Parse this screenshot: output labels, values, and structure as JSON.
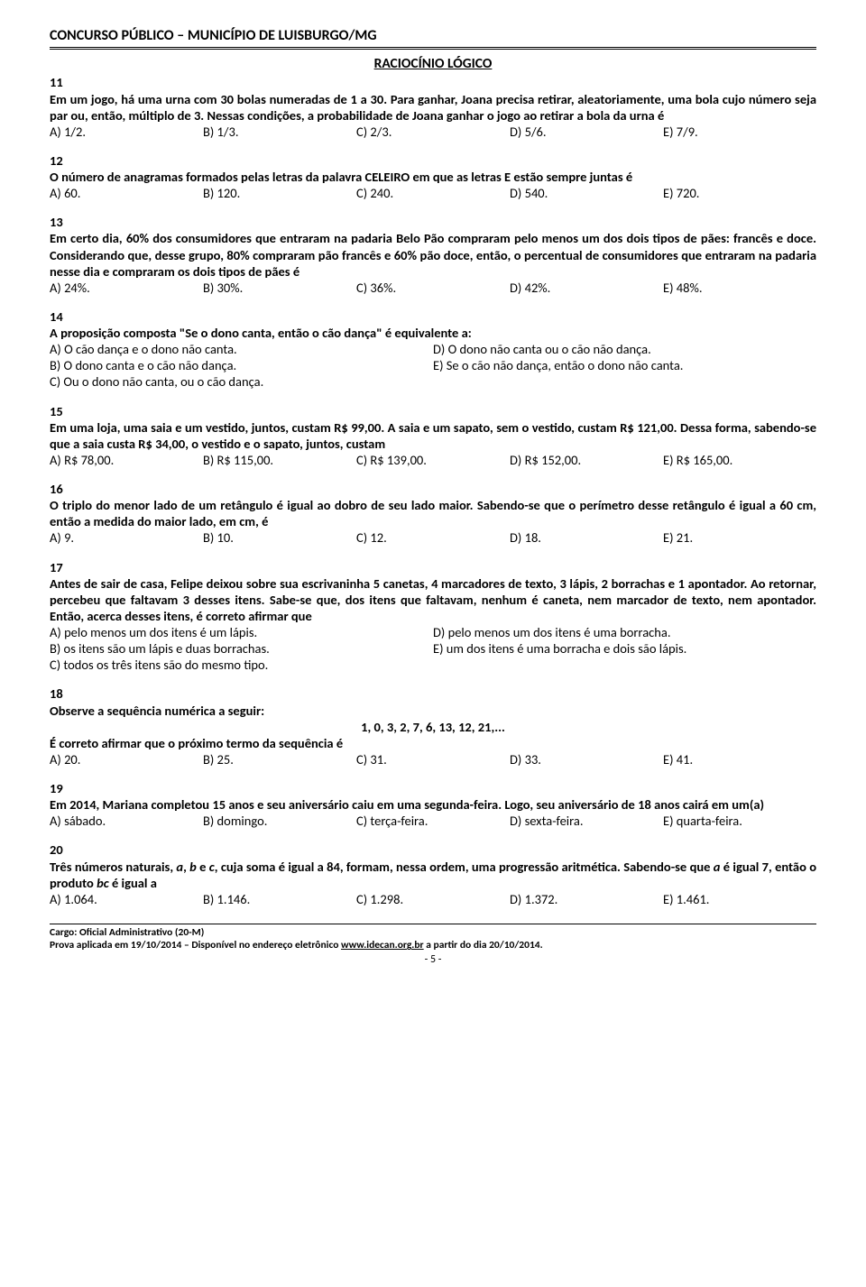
{
  "header": {
    "title": "CONCURSO PÚBLICO – MUNICÍPIO DE LUISBURGO/MG"
  },
  "section": {
    "title": "RACIOCÍNIO LÓGICO"
  },
  "q11": {
    "num": "11",
    "text": "Em um jogo, há uma urna com 30 bolas numeradas de 1 a 30. Para ganhar, Joana precisa retirar, aleatoriamente, uma bola cujo número seja par ou, então, múltiplo de 3. Nessas condições, a probabilidade de Joana ganhar o jogo ao retirar a bola da urna é",
    "a": "A) 1/2.",
    "b": "B) 1/3.",
    "c": "C) 2/3.",
    "d": "D) 5/6.",
    "e": "E) 7/9."
  },
  "q12": {
    "num": "12",
    "text": "O número de anagramas formados pelas letras da palavra CELEIRO em que as letras E estão sempre juntas é",
    "a": "A) 60.",
    "b": "B) 120.",
    "c": "C) 240.",
    "d": "D) 540.",
    "e": "E) 720."
  },
  "q13": {
    "num": "13",
    "text": "Em certo dia, 60% dos consumidores que entraram na padaria Belo Pão compraram pelo menos um dos dois tipos de pães: francês e doce. Considerando que, desse grupo, 80% compraram pão francês e 60% pão doce, então, o percentual de consumidores que entraram na padaria nesse dia e compraram os dois tipos de pães é",
    "a": "A) 24%.",
    "b": "B) 30%.",
    "c": "C) 36%.",
    "d": "D) 42%.",
    "e": "E) 48%."
  },
  "q14": {
    "num": "14",
    "text": "A proposição composta \"Se o dono canta, então o cão dança\" é equivalente a:",
    "a": "A) O cão dança e o dono não canta.",
    "b": "B) O dono canta e o cão não dança.",
    "c": "C) Ou o dono não canta, ou o cão dança.",
    "d": "D) O dono não canta ou o cão não dança.",
    "e": "E) Se o cão não dança, então o dono não canta."
  },
  "q15": {
    "num": "15",
    "text": "Em uma loja, uma saia e um vestido, juntos, custam R$ 99,00. A saia e um sapato, sem o vestido, custam R$ 121,00. Dessa forma, sabendo-se que a saia custa R$ 34,00, o vestido e o sapato, juntos, custam",
    "a": "A) R$ 78,00.",
    "b": "B) R$ 115,00.",
    "c": "C) R$ 139,00.",
    "d": "D) R$ 152,00.",
    "e": "E) R$ 165,00."
  },
  "q16": {
    "num": "16",
    "text": "O triplo do menor lado de um retângulo é igual ao dobro de seu lado maior. Sabendo-se que o perímetro desse retângulo é igual a 60 cm, então a medida do maior lado, em cm, é",
    "a": "A) 9.",
    "b": "B) 10.",
    "c": "C) 12.",
    "d": "D) 18.",
    "e": "E) 21."
  },
  "q17": {
    "num": "17",
    "text": "Antes de sair de casa, Felipe deixou sobre sua escrivaninha 5 canetas, 4 marcadores de texto, 3 lápis, 2 borrachas e 1 apontador. Ao retornar, percebeu que faltavam 3 desses itens. Sabe-se que, dos itens que faltavam, nenhum é caneta, nem marcador de texto, nem apontador. Então, acerca desses itens, é correto afirmar que",
    "a": "A) pelo menos um dos itens é um lápis.",
    "b": "B) os itens são um lápis e duas borrachas.",
    "c": "C) todos os três itens são do mesmo tipo.",
    "d": "D) pelo menos um dos itens é uma borracha.",
    "e": "E) um dos itens é uma borracha e dois são lápis."
  },
  "q18": {
    "num": "18",
    "text1": "Observe a sequência numérica a seguir:",
    "seq": "1, 0, 3, 2, 7, 6, 13, 12, 21,...",
    "text2": "É correto afirmar que o próximo termo da sequência é",
    "a": "A) 20.",
    "b": "B) 25.",
    "c": "C) 31.",
    "d": "D) 33.",
    "e": "E) 41."
  },
  "q19": {
    "num": "19",
    "text": "Em 2014, Mariana completou 15 anos e seu aniversário caiu em uma segunda-feira. Logo, seu aniversário de 18 anos cairá em um(a)",
    "a": "A) sábado.",
    "b": "B) domingo.",
    "c": "C) terça-feira.",
    "d": "D) sexta-feira.",
    "e": "E) quarta-feira."
  },
  "q20": {
    "num": "20",
    "t1": "Três números naturais, ",
    "v_a": "a",
    "c1": ", ",
    "v_b": "b",
    "t2": " e ",
    "v_c": "c",
    "t3": ", cuja soma é igual a 84, formam, nessa ordem, uma progressão aritmética. Sabendo-se que ",
    "v_a2": "a",
    "t4": " é igual 7, então o produto ",
    "v_bc": "bc",
    "t5": " é igual a",
    "a": "A) 1.064.",
    "b": "B) 1.146.",
    "c": "C) 1.298.",
    "d": "D) 1.372.",
    "e": "E) 1.461."
  },
  "footer": {
    "cargo": "Cargo: Oficial Administrativo (20-M)",
    "line2a": "Prova aplicada em 19/10/2014 – Disponível no endereço eletrônico ",
    "link": "www.idecan.org.br",
    "line2b": " a partir do dia 20/10/2014.",
    "page": "- 5 -"
  }
}
